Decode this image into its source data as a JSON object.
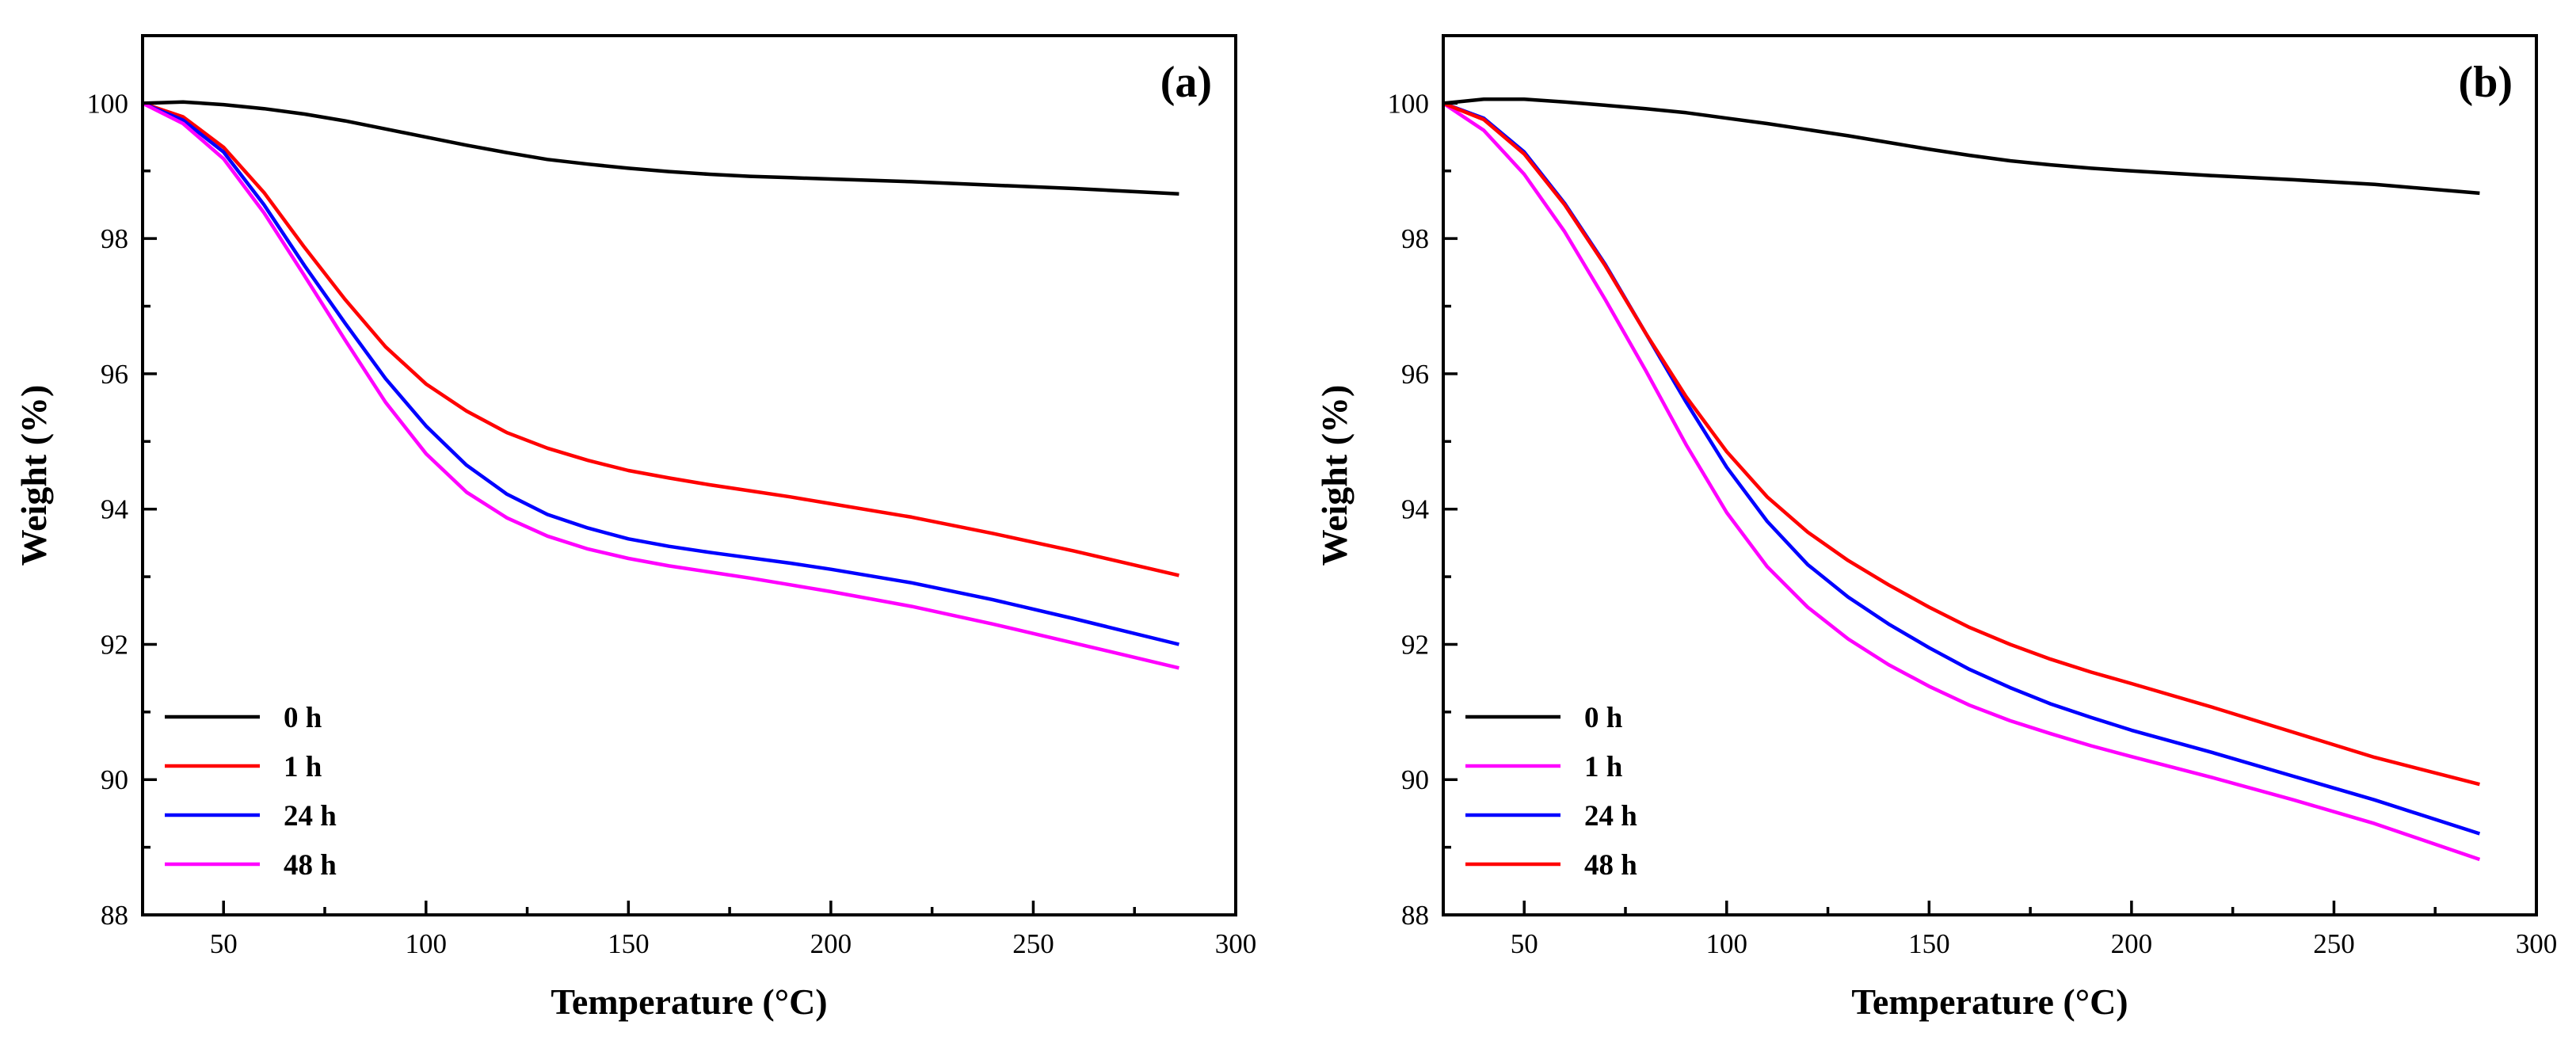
{
  "chart_data": [
    {
      "type": "line",
      "panel_label": "(a)",
      "xlabel": "Temperature (°C)",
      "ylabel": "Weight (%)",
      "xlim": [
        30,
        300
      ],
      "ylim": [
        88,
        101
      ],
      "xticks": [
        50,
        100,
        150,
        200,
        250,
        300
      ],
      "yticks": [
        88,
        90,
        92,
        94,
        96,
        98,
        100
      ],
      "legend_position": "bottom-left",
      "series": [
        {
          "name": "0 h",
          "color": "#000000",
          "x": [
            30,
            40,
            50,
            60,
            70,
            80,
            90,
            100,
            110,
            120,
            130,
            140,
            150,
            160,
            170,
            180,
            190,
            200,
            220,
            240,
            260,
            286
          ],
          "y": [
            100.0,
            100.02,
            99.98,
            99.92,
            99.84,
            99.74,
            99.62,
            99.5,
            99.38,
            99.27,
            99.17,
            99.1,
            99.04,
            98.99,
            98.95,
            98.92,
            98.9,
            98.88,
            98.84,
            98.79,
            98.74,
            98.66
          ]
        },
        {
          "name": "1 h",
          "color": "#ff0000",
          "x": [
            30,
            40,
            50,
            60,
            70,
            80,
            90,
            100,
            110,
            120,
            130,
            140,
            150,
            160,
            170,
            180,
            190,
            200,
            220,
            240,
            260,
            286
          ],
          "y": [
            100.0,
            99.8,
            99.35,
            98.68,
            97.87,
            97.1,
            96.4,
            95.85,
            95.45,
            95.13,
            94.9,
            94.72,
            94.57,
            94.46,
            94.36,
            94.27,
            94.18,
            94.08,
            93.88,
            93.64,
            93.38,
            93.02
          ]
        },
        {
          "name": "24 h",
          "color": "#0000ff",
          "x": [
            30,
            40,
            50,
            60,
            70,
            80,
            90,
            100,
            110,
            120,
            130,
            140,
            150,
            160,
            170,
            180,
            190,
            200,
            220,
            240,
            260,
            286
          ],
          "y": [
            100.0,
            99.75,
            99.28,
            98.5,
            97.6,
            96.75,
            95.93,
            95.23,
            94.65,
            94.22,
            93.92,
            93.72,
            93.56,
            93.45,
            93.36,
            93.28,
            93.2,
            93.11,
            92.91,
            92.66,
            92.38,
            92.0
          ]
        },
        {
          "name": "48 h",
          "color": "#ff00ff",
          "x": [
            30,
            40,
            50,
            60,
            70,
            80,
            90,
            100,
            110,
            120,
            130,
            140,
            150,
            160,
            170,
            180,
            190,
            200,
            220,
            240,
            260,
            286
          ],
          "y": [
            100.0,
            99.7,
            99.18,
            98.38,
            97.45,
            96.5,
            95.58,
            94.82,
            94.25,
            93.87,
            93.6,
            93.41,
            93.27,
            93.16,
            93.07,
            92.98,
            92.88,
            92.78,
            92.56,
            92.3,
            92.02,
            91.65
          ]
        }
      ]
    },
    {
      "type": "line",
      "panel_label": "(b)",
      "xlabel": "Temperature (°C)",
      "ylabel": "Weight (%)",
      "xlim": [
        30,
        300
      ],
      "ylim": [
        88,
        101
      ],
      "xticks": [
        50,
        100,
        150,
        200,
        250,
        300
      ],
      "yticks": [
        88,
        90,
        92,
        94,
        96,
        98,
        100
      ],
      "legend_position": "bottom-left",
      "series": [
        {
          "name": "0 h",
          "color": "#000000",
          "x": [
            30,
            40,
            50,
            60,
            70,
            80,
            90,
            100,
            110,
            120,
            130,
            140,
            150,
            160,
            170,
            180,
            190,
            200,
            220,
            240,
            260,
            286
          ],
          "y": [
            100.0,
            100.06,
            100.06,
            100.02,
            99.97,
            99.92,
            99.86,
            99.78,
            99.7,
            99.61,
            99.52,
            99.42,
            99.32,
            99.23,
            99.15,
            99.09,
            99.04,
            99.0,
            98.93,
            98.87,
            98.8,
            98.67
          ]
        },
        {
          "name": "1 h",
          "color": "#ff00ff",
          "x": [
            30,
            40,
            50,
            60,
            70,
            80,
            90,
            100,
            110,
            120,
            130,
            140,
            150,
            160,
            170,
            180,
            190,
            200,
            220,
            240,
            260,
            286
          ],
          "y": [
            100.0,
            99.6,
            98.95,
            98.1,
            97.1,
            96.05,
            94.95,
            93.95,
            93.15,
            92.55,
            92.08,
            91.7,
            91.38,
            91.1,
            90.87,
            90.68,
            90.5,
            90.34,
            90.03,
            89.7,
            89.35,
            88.82
          ]
        },
        {
          "name": "24 h",
          "color": "#0000ff",
          "x": [
            30,
            40,
            50,
            60,
            70,
            80,
            90,
            100,
            110,
            120,
            130,
            140,
            150,
            160,
            170,
            180,
            190,
            200,
            220,
            240,
            260,
            286
          ],
          "y": [
            100.0,
            99.78,
            99.28,
            98.52,
            97.62,
            96.6,
            95.58,
            94.62,
            93.82,
            93.18,
            92.7,
            92.3,
            91.95,
            91.63,
            91.36,
            91.12,
            90.92,
            90.73,
            90.4,
            90.05,
            89.7,
            89.2
          ]
        },
        {
          "name": "48 h",
          "color": "#ff0000",
          "x": [
            30,
            40,
            50,
            60,
            70,
            80,
            90,
            100,
            110,
            120,
            130,
            140,
            150,
            160,
            170,
            180,
            190,
            200,
            220,
            240,
            260,
            286
          ],
          "y": [
            100.0,
            99.76,
            99.25,
            98.5,
            97.6,
            96.6,
            95.66,
            94.85,
            94.18,
            93.66,
            93.24,
            92.88,
            92.55,
            92.25,
            92.0,
            91.78,
            91.59,
            91.42,
            91.07,
            90.7,
            90.33,
            89.93
          ]
        }
      ]
    }
  ]
}
